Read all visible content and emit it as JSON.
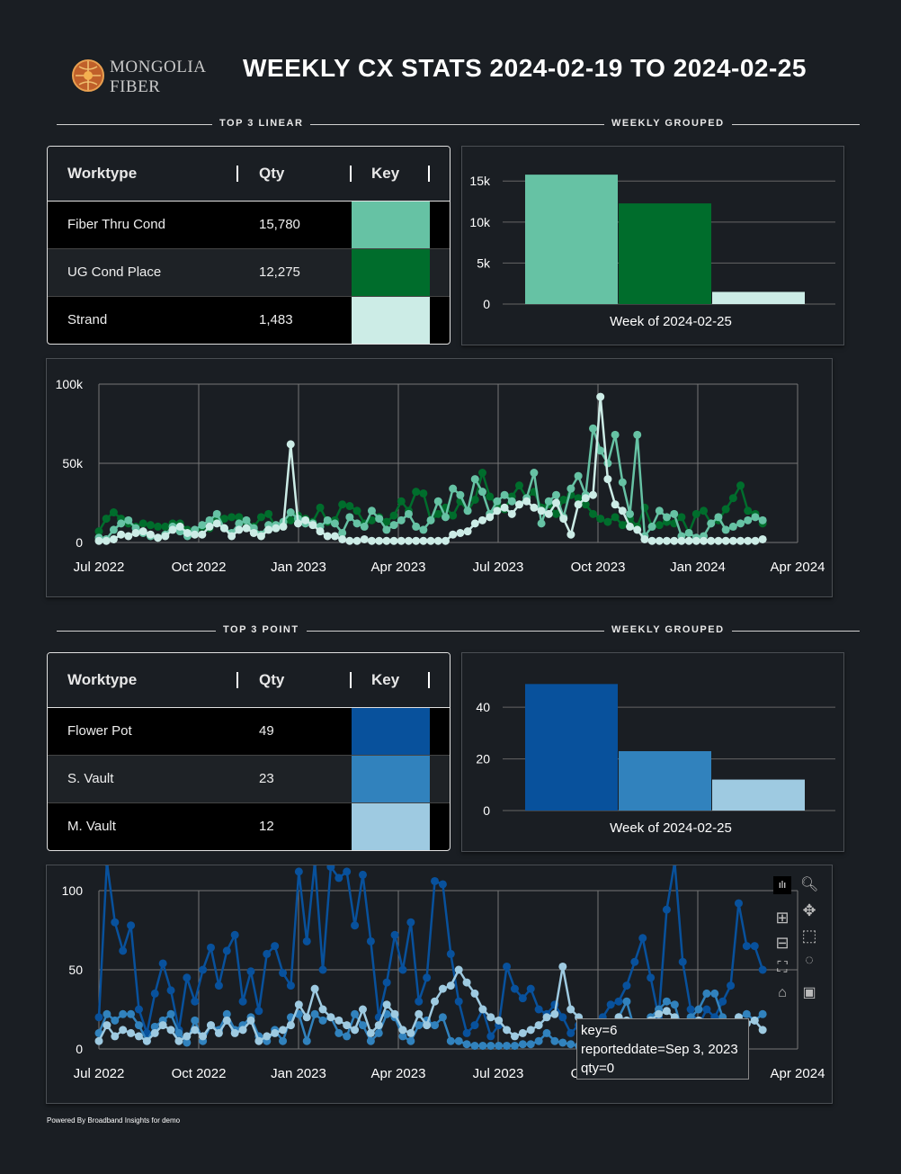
{
  "header": {
    "logo_line1": "MONGOLIA",
    "logo_line2": "FIBER",
    "title": "WEEKLY CX STATS 2024-02-19 TO 2024-02-25"
  },
  "linear_section": {
    "left_label": "TOP 3 LINEAR",
    "right_label": "WEEKLY GROUPED",
    "table": {
      "columns": [
        "Worktype",
        "Qty",
        "Key"
      ],
      "rows": [
        {
          "worktype": "Fiber Thru Cond",
          "qty": "15,780",
          "color": "#66c2a4"
        },
        {
          "worktype": "UG Cond Place",
          "qty": "12,275",
          "color": "#006d2c"
        },
        {
          "worktype": "Strand",
          "qty": "1,483",
          "color": "#ccece6"
        }
      ]
    }
  },
  "point_section": {
    "left_label": "TOP 3 POINT",
    "right_label": "WEEKLY GROUPED",
    "table": {
      "columns": [
        "Worktype",
        "Qty",
        "Key"
      ],
      "rows": [
        {
          "worktype": "Flower Pot",
          "qty": "49",
          "color": "#08519c"
        },
        {
          "worktype": "S. Vault",
          "qty": "23",
          "color": "#3182bd"
        },
        {
          "worktype": "M. Vault",
          "qty": "12",
          "color": "#9ecae1"
        }
      ]
    }
  },
  "tooltip": {
    "line1": "key=6",
    "line2": "reporteddate=Sep 3, 2023",
    "line3": "qty=0"
  },
  "modebar": {
    "icons": [
      "bar-icon",
      "zoom-icon",
      "zoom-in-icon",
      "pan-icon",
      "zoom-out-icon",
      "box-select-icon",
      "autoscale-icon",
      "lasso-icon",
      "reset-home-icon",
      "camera-icon"
    ]
  },
  "footer": "Powered By Broadband Insights for demo",
  "chart_data": [
    {
      "type": "bar",
      "categories": [
        "Week of 2024-02-25"
      ],
      "series": [
        {
          "values": [
            15780
          ],
          "color": "#66c2a4"
        },
        {
          "values": [
            12275
          ],
          "color": "#006d2c"
        },
        {
          "values": [
            1483
          ],
          "color": "#ccece6"
        }
      ],
      "yticks": [
        "0",
        "5k",
        "10k",
        "15k"
      ],
      "ylim": [
        0,
        17000
      ]
    },
    {
      "type": "line",
      "x_ticks": [
        "Jul 2022",
        "Oct 2022",
        "Jan 2023",
        "Apr 2023",
        "Jul 2023",
        "Oct 2023",
        "Jan 2024",
        "Apr 2024"
      ],
      "y_ticks": [
        "0",
        "50k",
        "100k"
      ],
      "ylim": [
        0,
        100000
      ],
      "x_start": "2022-07-04",
      "series": [
        {
          "color": "#006d2c",
          "values": [
            7000,
            15000,
            19000,
            15000,
            12000,
            10000,
            12000,
            11000,
            10000,
            10000,
            12000,
            12000,
            8000,
            6000,
            10000,
            9000,
            16000,
            15000,
            16000,
            16000,
            13000,
            10000,
            16000,
            18000,
            9000,
            12000,
            14000,
            17000,
            15000,
            13000,
            22000,
            13000,
            14000,
            24000,
            23000,
            20000,
            12000,
            14000,
            16000,
            13000,
            17000,
            26000,
            20000,
            32000,
            31000,
            14000,
            18000,
            22000,
            17000,
            26000,
            20000,
            27000,
            44000,
            29000,
            24000,
            21000,
            29000,
            36000,
            28000,
            32000,
            22000,
            24000,
            18000,
            27000,
            30000,
            28000,
            24000,
            18000,
            15000,
            13000,
            16000,
            11000,
            15000,
            10000,
            22000,
            10000,
            11000,
            13000,
            12000,
            16000,
            6000,
            18000,
            20000,
            12000,
            14000,
            21000,
            28000,
            36000,
            20000,
            18000,
            12000
          ]
        },
        {
          "color": "#66c2a4",
          "values": [
            3000,
            2000,
            8000,
            12000,
            14000,
            9000,
            6000,
            4000,
            3000,
            5000,
            10000,
            7000,
            4000,
            8000,
            11000,
            14000,
            18000,
            9000,
            6000,
            12000,
            14000,
            9000,
            5000,
            11000,
            11000,
            13000,
            19000,
            15000,
            12000,
            12000,
            10000,
            14000,
            12000,
            6000,
            16000,
            12000,
            10000,
            20000,
            15000,
            8000,
            11000,
            14000,
            18000,
            10000,
            8000,
            14000,
            26000,
            16000,
            34000,
            30000,
            20000,
            40000,
            32000,
            18000,
            26000,
            30000,
            26000,
            24000,
            28000,
            44000,
            12000,
            26000,
            30000,
            16000,
            34000,
            42000,
            30000,
            72000,
            58000,
            50000,
            68000,
            38000,
            18000,
            68000,
            4000,
            10000,
            20000,
            16000,
            18000,
            4000,
            6000,
            3000,
            4000,
            12000,
            16000,
            8000,
            10000,
            12000,
            14000,
            16000,
            14000
          ]
        },
        {
          "color": "#ccece6",
          "values": [
            1000,
            1000,
            2000,
            5000,
            4000,
            6000,
            7000,
            5000,
            3000,
            4000,
            8000,
            10000,
            6000,
            5000,
            5000,
            10000,
            12000,
            9000,
            4000,
            8000,
            9000,
            6000,
            4000,
            8000,
            9000,
            10000,
            62000,
            12000,
            14000,
            11000,
            7000,
            4000,
            4000,
            2000,
            1000,
            1000,
            2000,
            1000,
            1000,
            1000,
            1000,
            1000,
            1000,
            1000,
            1000,
            1000,
            1000,
            1000,
            5000,
            6000,
            7000,
            12000,
            14000,
            16000,
            20000,
            22000,
            18000,
            24000,
            26000,
            22000,
            20000,
            18000,
            25000,
            15000,
            5000,
            24000,
            28000,
            30000,
            92000,
            40000,
            24000,
            20000,
            10000,
            8000,
            2000,
            1000,
            1000,
            1000,
            1000,
            1000,
            1000,
            1000,
            1000,
            1000,
            1000,
            1000,
            1000,
            1000,
            1000,
            1000,
            2000
          ]
        }
      ]
    },
    {
      "type": "bar",
      "categories": [
        "Week of 2024-02-25"
      ],
      "series": [
        {
          "values": [
            49
          ],
          "color": "#08519c"
        },
        {
          "values": [
            23
          ],
          "color": "#3182bd"
        },
        {
          "values": [
            12
          ],
          "color": "#9ecae1"
        }
      ],
      "yticks": [
        "0",
        "20",
        "40"
      ],
      "ylim": [
        0,
        54
      ]
    },
    {
      "type": "line",
      "x_ticks": [
        "Jul 2022",
        "Oct 2022",
        "Jan 2023",
        "Apr 2023",
        "Jul 2023",
        "Oct 2023",
        "Apr 2024"
      ],
      "y_ticks": [
        "0",
        "50",
        "100"
      ],
      "ylim": [
        0,
        100
      ],
      "x_start": "2022-07-04",
      "series": [
        {
          "color": "#08519c",
          "values": [
            20,
            118,
            80,
            62,
            78,
            25,
            10,
            35,
            54,
            37,
            12,
            45,
            30,
            50,
            64,
            40,
            62,
            72,
            30,
            49,
            24,
            60,
            65,
            48,
            40,
            112,
            68,
            118,
            50,
            115,
            108,
            112,
            78,
            110,
            68,
            20,
            42,
            72,
            50,
            80,
            30,
            45,
            106,
            104,
            60,
            30,
            10,
            15,
            25,
            8,
            15,
            52,
            38,
            32,
            38,
            25,
            22,
            28,
            20,
            10,
            15,
            12,
            15,
            20,
            28,
            30,
            40,
            55,
            70,
            45,
            20,
            88,
            118,
            55,
            25,
            15,
            25,
            20,
            30,
            40,
            92,
            65,
            65,
            50
          ]
        },
        {
          "color": "#3182bd",
          "values": [
            10,
            22,
            18,
            22,
            22,
            15,
            5,
            14,
            18,
            22,
            10,
            4,
            18,
            5,
            15,
            12,
            22,
            12,
            15,
            20,
            8,
            5,
            12,
            5,
            20,
            22,
            5,
            22,
            18,
            20,
            10,
            8,
            22,
            15,
            5,
            10,
            22,
            20,
            8,
            5,
            15,
            18,
            15,
            20,
            5,
            5,
            3,
            2,
            2,
            2,
            2,
            2,
            2,
            3,
            3,
            5,
            10,
            5,
            4,
            3,
            2,
            5,
            3,
            3,
            15,
            20,
            30,
            12,
            8,
            20,
            25,
            30,
            28,
            10,
            20,
            25,
            35,
            35,
            20,
            15,
            20,
            22,
            18,
            22
          ]
        },
        {
          "color": "#9ecae1",
          "values": [
            5,
            15,
            8,
            12,
            10,
            8,
            5,
            10,
            15,
            12,
            5,
            8,
            12,
            8,
            15,
            10,
            18,
            10,
            12,
            18,
            5,
            8,
            10,
            12,
            15,
            28,
            20,
            38,
            25,
            20,
            18,
            15,
            12,
            25,
            10,
            15,
            28,
            22,
            12,
            10,
            22,
            15,
            30,
            38,
            40,
            50,
            42,
            35,
            25,
            20,
            18,
            12,
            8,
            10,
            12,
            15,
            20,
            22,
            52,
            25,
            20,
            15,
            10,
            12,
            8,
            20,
            18,
            14,
            12,
            18,
            22,
            24,
            20,
            16,
            14,
            18,
            12,
            10,
            10,
            15,
            20,
            16,
            18,
            12
          ]
        }
      ]
    }
  ]
}
